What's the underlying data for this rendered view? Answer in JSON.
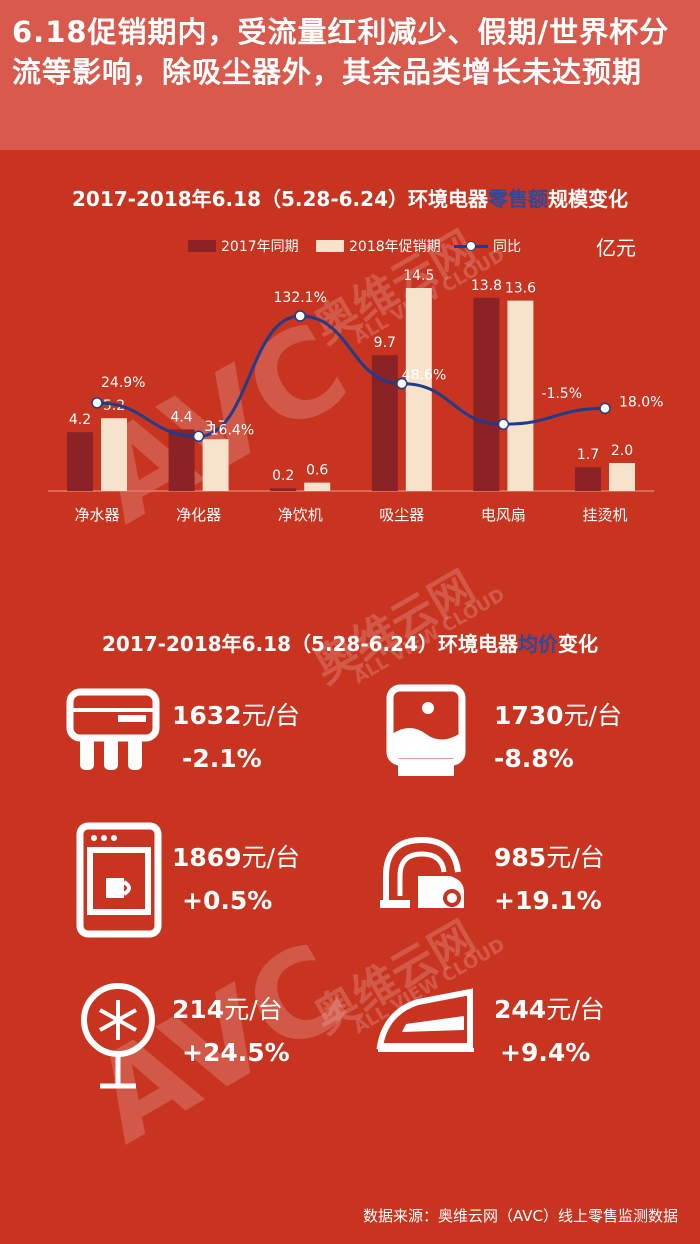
{
  "header": {
    "title": "6.18促销期内，受流量红利减少、假期/世界杯分流等影响，除吸尘器外，其余品类增长未达预期"
  },
  "chart_section": {
    "title_prefix": "2017-2018年6.18（5.28-6.24）环境电器",
    "title_highlight": "零售额",
    "title_suffix": "规模变化",
    "unit": "亿元"
  },
  "chart_data": {
    "type": "bar",
    "categories": [
      "净水器",
      "净化器",
      "净饮机",
      "吸尘器",
      "电风扇",
      "挂烫机"
    ],
    "series": [
      {
        "name": "2017年同期",
        "type": "bar",
        "values": [
          4.2,
          4.4,
          0.2,
          9.7,
          13.8,
          1.7
        ],
        "labels": [
          "4.2",
          "4.4",
          "0.2",
          "9.7",
          "13.8",
          "1.7"
        ]
      },
      {
        "name": "2018年促销期",
        "type": "bar",
        "values": [
          5.2,
          3.7,
          0.6,
          14.5,
          13.6,
          2.0
        ],
        "labels": [
          "5.2",
          "3.7",
          "0.6",
          "14.5",
          "13.6",
          "2.0"
        ]
      },
      {
        "name": "同比",
        "type": "line",
        "values": [
          24.9,
          -16.4,
          132.1,
          48.6,
          -1.5,
          18.0
        ],
        "labels": [
          "24.9%",
          "-16.4%",
          "132.1%",
          "48.6%",
          "-1.5%",
          "18.0%"
        ]
      }
    ],
    "colors": {
      "bar2017": "#8b2226",
      "bar2018": "#f7e3cc",
      "line": "#1f3d8a"
    }
  },
  "price_section": {
    "title_prefix": "2017-2018年6.18（5.28-6.24）环境电器",
    "title_highlight": "均价",
    "title_suffix": "变化",
    "items": [
      {
        "icon": "water-purifier-icon",
        "price": "1632",
        "unit": "元/台",
        "change": "-2.1%"
      },
      {
        "icon": "air-purifier-icon",
        "price": "1730",
        "unit": "元/台",
        "change": "-8.8%"
      },
      {
        "icon": "water-dispenser-icon",
        "price": "1869",
        "unit": "元/台",
        "change": "+0.5%"
      },
      {
        "icon": "vacuum-cleaner-icon",
        "price": "985",
        "unit": "元/台",
        "change": "+19.1%"
      },
      {
        "icon": "electric-fan-icon",
        "price": "214",
        "unit": "元/台",
        "change": "+24.5%"
      },
      {
        "icon": "iron-icon",
        "price": "244",
        "unit": "元/台",
        "change": "+9.4%"
      }
    ]
  },
  "watermark": {
    "brand": "AVC",
    "name": "奥维云网",
    "tagline": "ALL VIEW CLOUD"
  },
  "source": "数据来源：奥维云网（AVC）线上零售监测数据"
}
